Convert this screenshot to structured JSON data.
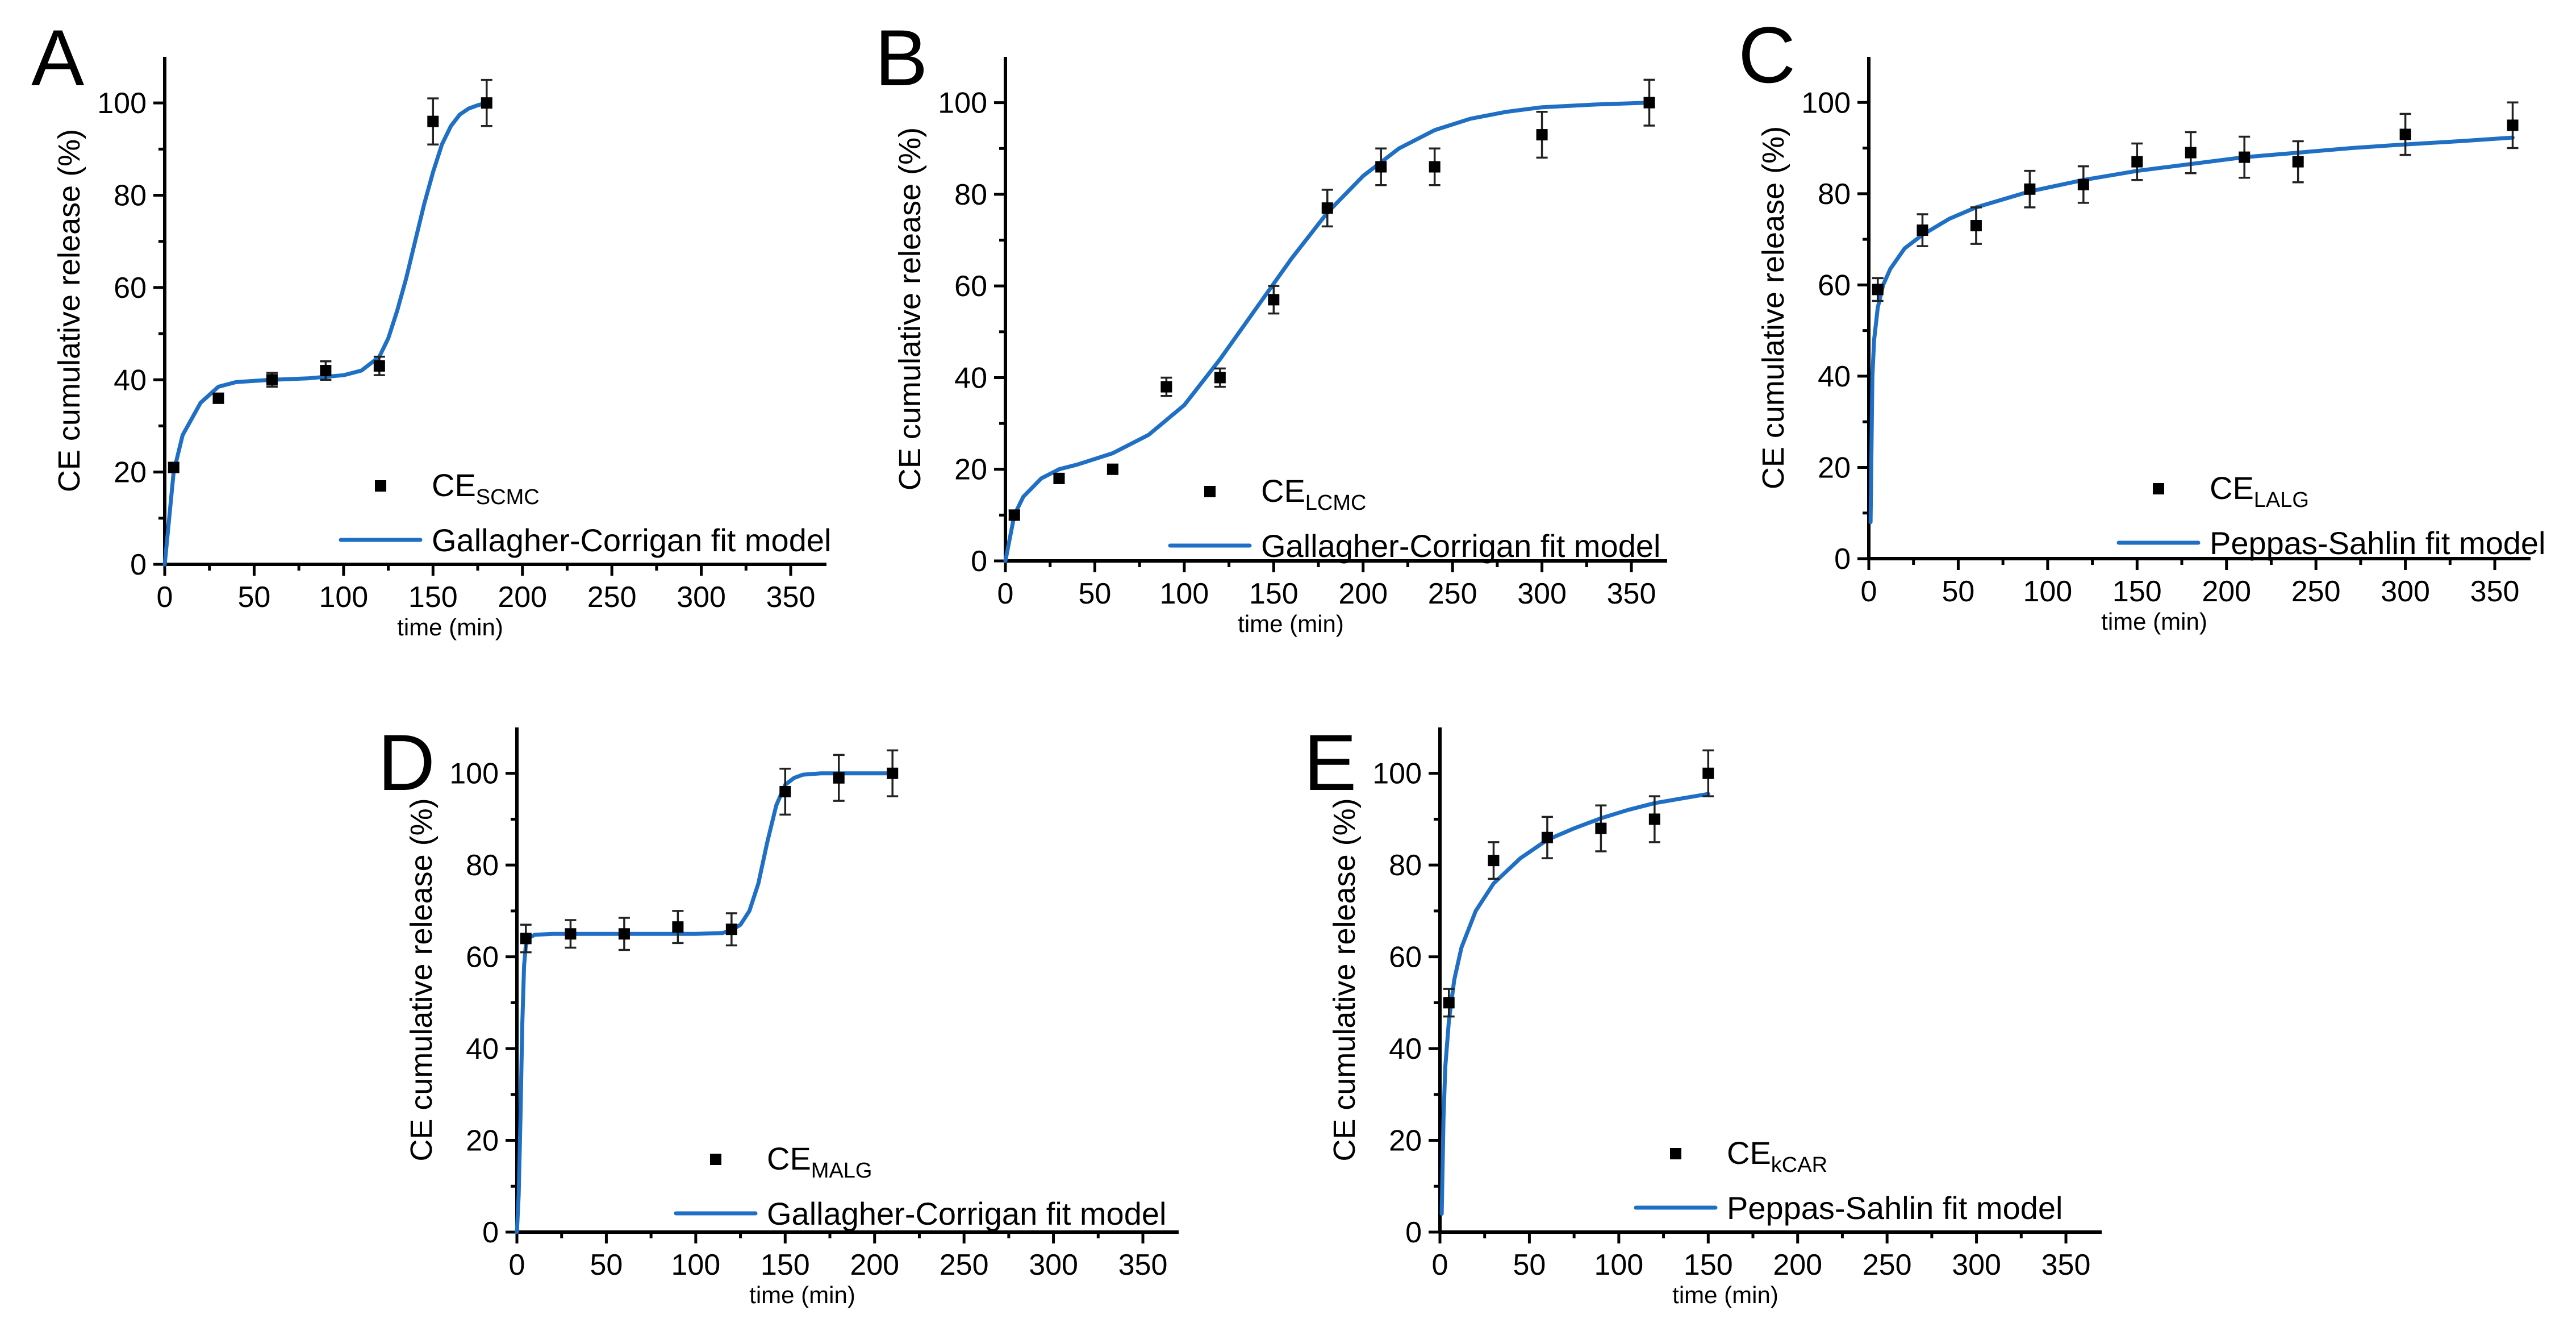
{
  "figure": {
    "accent_color": "#1f6fc4",
    "marker_color": "#000000"
  },
  "chart_data": [
    {
      "type": "scatter",
      "panel": "A",
      "xlabel": "time (min)",
      "ylabel": "CE cumulative release (%)",
      "xlim": [
        0,
        370
      ],
      "ylim": [
        0,
        110
      ],
      "xticks": [
        0,
        50,
        100,
        150,
        200,
        250,
        300,
        350
      ],
      "yticks": [
        0,
        20,
        40,
        60,
        80,
        100
      ],
      "legend_position": "bottom-right",
      "series": [
        {
          "name": "CE",
          "name_sub": "SCMC",
          "kind": "marker",
          "x": [
            5,
            30,
            60,
            90,
            120,
            150,
            180
          ],
          "y": [
            21,
            36,
            40,
            42,
            43,
            96,
            100
          ],
          "err": [
            1,
            1,
            1.5,
            2,
            2,
            5,
            5
          ]
        },
        {
          "name": "Gallagher-Corrigan fit model",
          "kind": "line",
          "color": "#1f6fc4",
          "x": [
            0,
            5,
            10,
            20,
            30,
            40,
            60,
            80,
            100,
            110,
            120,
            125,
            130,
            135,
            140,
            145,
            150,
            155,
            160,
            165,
            170,
            175,
            180
          ],
          "y": [
            0,
            20,
            28,
            35,
            38.5,
            39.5,
            40,
            40.3,
            41,
            42,
            45,
            49,
            55,
            62,
            70,
            78,
            85,
            91,
            95,
            97.5,
            98.8,
            99.5,
            100
          ]
        }
      ]
    },
    {
      "type": "scatter",
      "panel": "B",
      "xlabel": "time (min)",
      "ylabel": "CE cumulative release (%)",
      "xlim": [
        0,
        370
      ],
      "ylim": [
        0,
        110
      ],
      "xticks": [
        0,
        50,
        100,
        150,
        200,
        250,
        300,
        350
      ],
      "yticks": [
        0,
        20,
        40,
        60,
        80,
        100
      ],
      "legend_position": "bottom-right",
      "series": [
        {
          "name": "CE",
          "name_sub": "LCMC",
          "kind": "marker",
          "x": [
            5,
            30,
            60,
            90,
            120,
            150,
            180,
            210,
            240,
            300,
            360
          ],
          "y": [
            10,
            18,
            20,
            38,
            40,
            57,
            77,
            86,
            86,
            93,
            100
          ],
          "err": [
            1,
            1,
            1,
            2,
            2,
            3,
            4,
            4,
            4,
            5,
            5
          ]
        },
        {
          "name": "Gallagher-Corrigan fit model",
          "kind": "line",
          "color": "#1f6fc4",
          "x": [
            0,
            5,
            10,
            20,
            30,
            40,
            60,
            80,
            100,
            120,
            140,
            160,
            180,
            200,
            220,
            240,
            260,
            280,
            300,
            330,
            360
          ],
          "y": [
            0,
            10,
            14,
            18,
            20,
            21,
            23.5,
            27.5,
            34,
            44,
            55,
            66,
            76,
            84,
            90,
            94,
            96.5,
            98,
            99,
            99.6,
            100
          ]
        }
      ]
    },
    {
      "type": "scatter",
      "panel": "C",
      "xlabel": "time (min)",
      "ylabel": "CE cumulative release (%)",
      "xlim": [
        0,
        370
      ],
      "ylim": [
        0,
        110
      ],
      "xticks": [
        0,
        50,
        100,
        150,
        200,
        250,
        300,
        350
      ],
      "yticks": [
        0,
        20,
        40,
        60,
        80,
        100
      ],
      "legend_position": "bottom-right",
      "series": [
        {
          "name": "CE",
          "name_sub": "LALG",
          "kind": "marker",
          "x": [
            5,
            30,
            60,
            90,
            120,
            150,
            180,
            210,
            240,
            300,
            360
          ],
          "y": [
            59,
            72,
            73,
            81,
            82,
            87,
            89,
            88,
            87,
            93,
            95
          ],
          "err": [
            2.5,
            3.5,
            4,
            4,
            4,
            4,
            4.5,
            4.5,
            4.5,
            4.5,
            5
          ]
        },
        {
          "name": "Peppas-Sahlin fit model",
          "kind": "line",
          "color": "#1f6fc4",
          "x": [
            1,
            2,
            3,
            5,
            8,
            12,
            20,
            30,
            45,
            60,
            90,
            120,
            150,
            180,
            210,
            240,
            270,
            300,
            330,
            360
          ],
          "y": [
            8,
            40,
            48,
            55,
            60,
            63.5,
            68,
            71,
            74.5,
            77,
            80.5,
            83,
            85,
            86.5,
            88,
            89,
            90,
            90.8,
            91.5,
            92.3
          ]
        }
      ]
    },
    {
      "type": "scatter",
      "panel": "D",
      "xlabel": "time (min)",
      "ylabel": "CE cumulative release (%)",
      "xlim": [
        0,
        370
      ],
      "ylim": [
        0,
        110
      ],
      "xticks": [
        0,
        50,
        100,
        150,
        200,
        250,
        300,
        350
      ],
      "yticks": [
        0,
        20,
        40,
        60,
        80,
        100
      ],
      "legend_position": "bottom-right",
      "series": [
        {
          "name": "CE",
          "name_sub": "MALG",
          "kind": "marker",
          "x": [
            5,
            30,
            60,
            90,
            120,
            150,
            180,
            210
          ],
          "y": [
            64,
            65,
            65,
            66.5,
            66,
            96,
            99,
            100
          ],
          "err": [
            3,
            3,
            3.5,
            3.5,
            3.5,
            5,
            5,
            5
          ]
        },
        {
          "name": "Gallagher-Corrigan fit model",
          "kind": "line",
          "color": "#1f6fc4",
          "x": [
            0,
            1,
            2,
            3,
            4,
            5,
            7,
            10,
            20,
            60,
            100,
            115,
            120,
            125,
            130,
            135,
            140,
            145,
            150,
            155,
            160,
            170,
            180,
            210
          ],
          "y": [
            0,
            8,
            25,
            45,
            58,
            62.5,
            64.2,
            64.8,
            65,
            65,
            65,
            65.2,
            65.8,
            67,
            70,
            76,
            85,
            93,
            97.5,
            99,
            99.7,
            100,
            100,
            100
          ]
        }
      ]
    },
    {
      "type": "scatter",
      "panel": "E",
      "xlabel": "time (min)",
      "ylabel": "CE cumulative release (%)",
      "xlim": [
        0,
        370
      ],
      "ylim": [
        0,
        110
      ],
      "xticks": [
        0,
        50,
        100,
        150,
        200,
        250,
        300,
        350
      ],
      "yticks": [
        0,
        20,
        40,
        60,
        80,
        100
      ],
      "legend_position": "bottom-right",
      "series": [
        {
          "name": "CE",
          "name_sub": "kCAR",
          "kind": "marker",
          "x": [
            5,
            30,
            60,
            90,
            120,
            150
          ],
          "y": [
            50,
            81,
            86,
            88,
            90,
            100
          ],
          "err": [
            3,
            4,
            4.5,
            5,
            5,
            5
          ]
        },
        {
          "name": "Peppas-Sahlin fit model",
          "kind": "line",
          "color": "#1f6fc4",
          "x": [
            1,
            2,
            3,
            5,
            8,
            12,
            20,
            30,
            45,
            60,
            75,
            90,
            105,
            120,
            135,
            150
          ],
          "y": [
            4,
            25,
            36,
            46,
            55,
            62,
            70,
            76,
            81.5,
            85.5,
            88,
            90.2,
            92,
            93.5,
            94.5,
            95.5
          ]
        }
      ]
    }
  ]
}
